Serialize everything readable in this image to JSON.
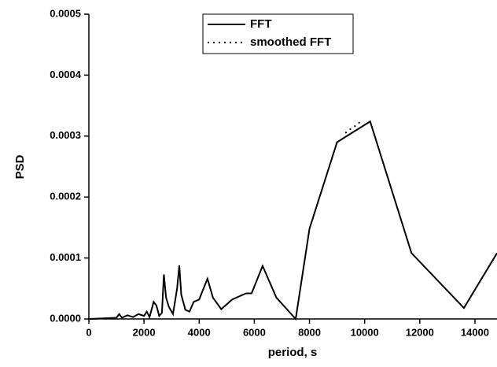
{
  "chart_data": {
    "type": "line",
    "x_label": "period, s",
    "y_label": "PSD",
    "xlim": [
      0,
      14800
    ],
    "ylim": [
      0,
      0.0005
    ],
    "xticks": [
      0,
      2000,
      4000,
      6000,
      8000,
      10000,
      12000,
      14000
    ],
    "yticks": [
      {
        "value": 0,
        "label": "0.0000"
      },
      {
        "value": 0.0001,
        "label": "0.0001"
      },
      {
        "value": 0.0002,
        "label": "0.0002"
      },
      {
        "value": 0.0003,
        "label": "0.0003"
      },
      {
        "value": 0.0004,
        "label": "0.0004"
      },
      {
        "value": 0.0005,
        "label": "0.0005"
      }
    ],
    "legend": "top-center",
    "series": [
      {
        "name": "FFT",
        "color": "#000000",
        "style": "solid",
        "x": [
          0,
          1000,
          1100,
          1200,
          1400,
          1600,
          1800,
          2000,
          2100,
          2200,
          2350,
          2450,
          2550,
          2650,
          2720,
          2800,
          2900,
          3050,
          3200,
          3280,
          3350,
          3500,
          3650,
          3800,
          4000,
          4300,
          4500,
          4800,
          5200,
          5700,
          5900,
          6300,
          6800,
          7200,
          7500,
          8000,
          9000,
          10200,
          11700,
          13600,
          14800
        ],
        "values": [
          0,
          2e-06,
          8e-06,
          2e-06,
          6e-06,
          3e-06,
          8e-06,
          5e-06,
          1.2e-05,
          3e-06,
          2.8e-05,
          2.2e-05,
          5e-06,
          1e-05,
          7.3e-05,
          3.5e-05,
          2e-05,
          8e-06,
          5e-05,
          8.8e-05,
          4e-05,
          1.5e-05,
          1.2e-05,
          2.8e-05,
          3.2e-05,
          6.6e-05,
          3.5e-05,
          1.6e-05,
          3.2e-05,
          4.2e-05,
          4.2e-05,
          8.7e-05,
          3.5e-05,
          1.5e-05,
          0,
          0.000148,
          0.00029,
          0.000324,
          0.000108,
          1.8e-05,
          0.000108
        ]
      },
      {
        "name": "smoothed FFT",
        "color": "#000000",
        "style": "dotted",
        "x": [
          9300,
          9500,
          9700,
          9900
        ],
        "values": [
          0.000305,
          0.000312,
          0.000318,
          0.000326
        ]
      }
    ]
  }
}
